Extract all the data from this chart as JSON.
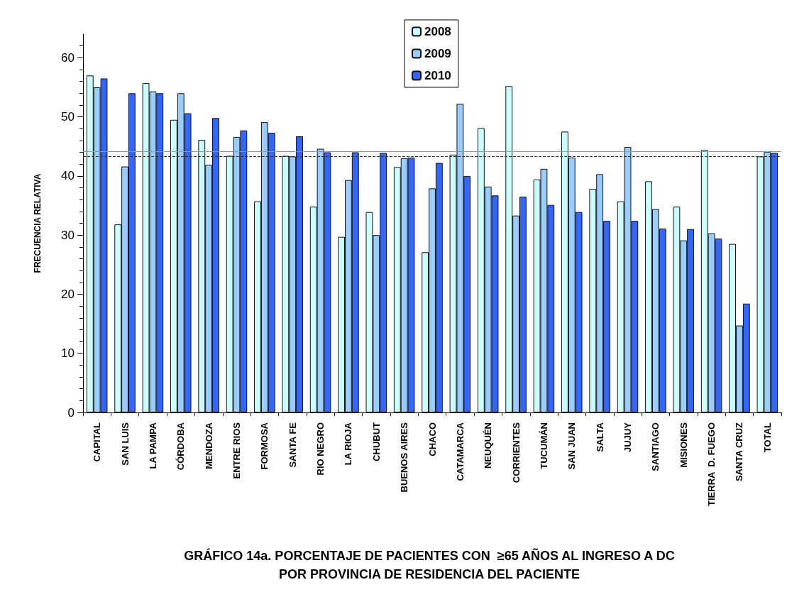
{
  "chart_data": {
    "type": "bar",
    "title": "GRÁFICO 14a. PORCENTAJE DE PACIENTES CON  ≥65 AÑOS AL INGRESO A DC\nPOR PROVINCIA DE RESIDENCIA DEL PACIENTE",
    "ylabel": "FRECUENCIA RELATIVA",
    "categories": [
      "CAPITAL",
      "SAN LUIS",
      "LA PAMPA",
      "CÓRDOBA",
      "MENDOZA",
      "ENTRE RIOS",
      "FORMOSA",
      "SANTA FE",
      "RIO NEGRO",
      "LA RIOJA",
      "CHUBUT",
      "BUENOS AIRES",
      "CHACO",
      "CATAMARCA",
      "NEUQUÉN",
      "CORRIENTES",
      "TUCUMÁN",
      "SAN JUAN",
      "SALTA",
      "JUJUY",
      "SANTIAGO",
      "MISIONES",
      "TIERRA  D. FUEGO",
      "SANTA CRUZ",
      "TOTAL"
    ],
    "series": [
      {
        "name": "2008",
        "color": "#ccffff",
        "values": [
          57.0,
          31.8,
          55.7,
          49.5,
          46.1,
          43.4,
          35.7,
          43.4,
          34.8,
          29.7,
          33.9,
          41.5,
          27.1,
          43.6,
          48.1,
          55.2,
          39.4,
          47.5,
          37.8,
          35.7,
          39.1,
          34.8,
          44.4,
          28.5,
          43.3
        ]
      },
      {
        "name": "2009",
        "color": "#99ccff",
        "values": [
          55.0,
          41.6,
          54.3,
          54.0,
          41.9,
          46.6,
          49.1,
          43.3,
          44.6,
          39.3,
          30.0,
          43.0,
          37.9,
          52.2,
          38.2,
          33.3,
          41.2,
          43.1,
          40.3,
          44.9,
          34.4,
          29.1,
          30.3,
          14.7,
          44.1
        ]
      },
      {
        "name": "2010",
        "color": "#3366ff",
        "values": [
          56.5,
          54.0,
          54.0,
          50.6,
          49.8,
          47.7,
          47.3,
          46.7,
          44.0,
          44.0,
          43.9,
          43.1,
          42.2,
          40.0,
          36.7,
          36.5,
          35.1,
          33.9,
          32.4,
          32.4,
          31.1,
          31.0,
          29.4,
          18.4,
          43.9
        ]
      }
    ],
    "ylim": [
      0,
      64
    ],
    "yticks": [
      0,
      10,
      20,
      30,
      40,
      50,
      60
    ],
    "ref_lines": [
      {
        "axis": "y",
        "value": 44.1,
        "color": "#999999",
        "line_style": "solid"
      },
      {
        "axis": "y",
        "value": 43.3,
        "color": "#333333",
        "line_style": "dashed"
      }
    ],
    "grid": false,
    "legend": "top"
  }
}
